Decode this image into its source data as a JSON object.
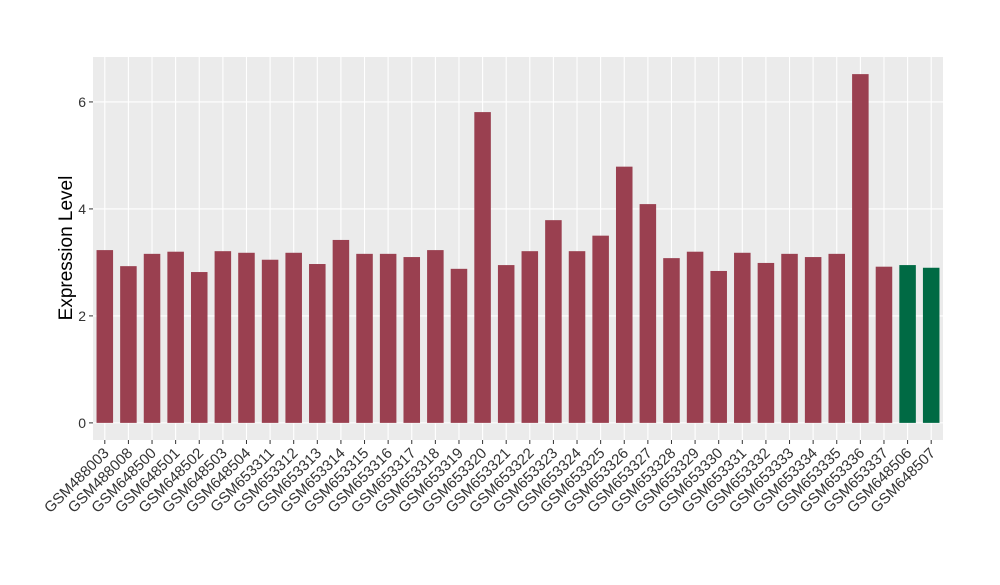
{
  "chart_data": {
    "type": "bar",
    "y_label": "Expression Level",
    "categories": [
      "GSM488003",
      "GSM488008",
      "GSM648500",
      "GSM648501",
      "GSM648502",
      "GSM648503",
      "GSM648504",
      "GSM653311",
      "GSM653312",
      "GSM653313",
      "GSM653314",
      "GSM653315",
      "GSM653316",
      "GSM653317",
      "GSM653318",
      "GSM653319",
      "GSM653320",
      "GSM653321",
      "GSM653322",
      "GSM653323",
      "GSM653324",
      "GSM653325",
      "GSM653326",
      "GSM653327",
      "GSM653328",
      "GSM653329",
      "GSM653330",
      "GSM653331",
      "GSM653332",
      "GSM653333",
      "GSM653334",
      "GSM653335",
      "GSM653336",
      "GSM653337",
      "GSM648506",
      "GSM648507"
    ],
    "values": [
      3.23,
      2.93,
      3.16,
      3.2,
      2.82,
      3.21,
      3.18,
      3.05,
      3.18,
      2.97,
      3.42,
      3.16,
      3.16,
      3.1,
      3.23,
      2.88,
      5.81,
      2.95,
      3.21,
      3.79,
      3.21,
      3.5,
      4.79,
      4.09,
      3.08,
      3.2,
      2.84,
      3.18,
      2.99,
      3.16,
      3.1,
      3.16,
      6.52,
      2.92,
      2.95,
      2.9
    ],
    "colors": [
      "#9a4050",
      "#9a4050",
      "#9a4050",
      "#9a4050",
      "#9a4050",
      "#9a4050",
      "#9a4050",
      "#9a4050",
      "#9a4050",
      "#9a4050",
      "#9a4050",
      "#9a4050",
      "#9a4050",
      "#9a4050",
      "#9a4050",
      "#9a4050",
      "#9a4050",
      "#9a4050",
      "#9a4050",
      "#9a4050",
      "#9a4050",
      "#9a4050",
      "#9a4050",
      "#9a4050",
      "#9a4050",
      "#9a4050",
      "#9a4050",
      "#9a4050",
      "#9a4050",
      "#9a4050",
      "#9a4050",
      "#9a4050",
      "#9a4050",
      "#9a4050",
      "#006a44",
      "#006a44"
    ],
    "ylim": [
      -0.32,
      6.84
    ],
    "yticks": [
      0,
      2,
      4,
      6
    ],
    "grid": true
  }
}
